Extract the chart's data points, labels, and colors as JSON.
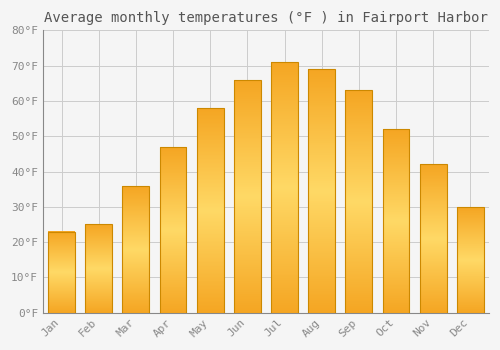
{
  "title": "Average monthly temperatures (°F ) in Fairport Harbor",
  "months": [
    "Jan",
    "Feb",
    "Mar",
    "Apr",
    "May",
    "Jun",
    "Jul",
    "Aug",
    "Sep",
    "Oct",
    "Nov",
    "Dec"
  ],
  "values": [
    23,
    25,
    36,
    47,
    58,
    66,
    71,
    69,
    63,
    52,
    42,
    30
  ],
  "bar_color_face": "#FFA500",
  "bar_color_light": "#FFD966",
  "bar_edge_color": "#CC8800",
  "background_color": "#F5F5F5",
  "grid_color": "#CCCCCC",
  "title_fontsize": 10,
  "tick_fontsize": 8,
  "ylim": [
    0,
    80
  ],
  "ytick_step": 10
}
